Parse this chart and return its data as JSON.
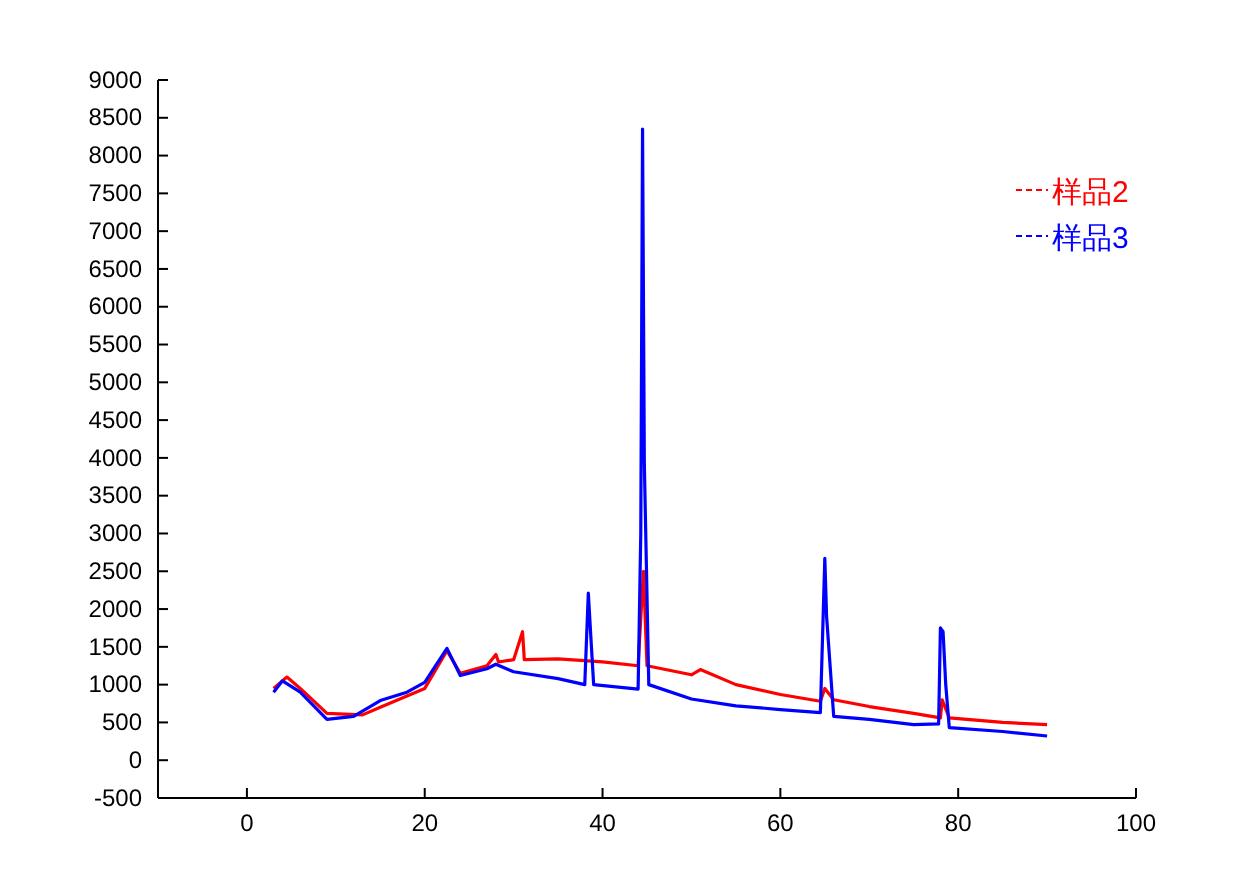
{
  "chart_data": {
    "type": "line",
    "xlim": [
      -10,
      100
    ],
    "xticks": [
      0,
      20,
      40,
      60,
      80,
      100
    ],
    "ylim": [
      -500,
      9000
    ],
    "yticks": [
      -500,
      0,
      500,
      1000,
      1500,
      2000,
      2500,
      3000,
      3500,
      4000,
      4500,
      5000,
      5500,
      6000,
      6500,
      7000,
      7500,
      8000,
      8500,
      9000
    ],
    "grid": false,
    "legend": "top right",
    "line_style": "solid",
    "marker": "none",
    "series": [
      {
        "name": "样品2",
        "color": "#ff0000",
        "x": [
          3,
          4.5,
          6,
          9,
          13,
          15,
          18,
          20,
          22.5,
          24,
          27,
          28,
          28.3,
          30,
          31,
          31.2,
          35,
          40,
          44,
          44.6,
          45,
          50,
          51,
          55,
          60,
          64.5,
          65,
          66,
          70,
          75,
          78,
          78.2,
          79,
          85,
          90
        ],
        "values": [
          950,
          1100,
          950,
          620,
          600,
          700,
          850,
          950,
          1450,
          1150,
          1250,
          1400,
          1300,
          1330,
          1700,
          1330,
          1340,
          1300,
          1250,
          2500,
          1250,
          1130,
          1200,
          1000,
          870,
          780,
          950,
          800,
          710,
          620,
          560,
          800,
          560,
          500,
          470
        ]
      },
      {
        "name": "样品3",
        "color": "#0000ff",
        "x": [
          3,
          4,
          6,
          9,
          12,
          15,
          18,
          20,
          22.5,
          24,
          27,
          28,
          30,
          35,
          38,
          38.4,
          38.6,
          39,
          44,
          44.3,
          44.5,
          44.7,
          45.2,
          50,
          55,
          60,
          64.5,
          65,
          65.2,
          66,
          70,
          75,
          77.8,
          78,
          78.3,
          78.6,
          79,
          85,
          90
        ],
        "values": [
          900,
          1050,
          900,
          540,
          580,
          790,
          900,
          1030,
          1480,
          1120,
          1210,
          1270,
          1170,
          1080,
          1000,
          2210,
          1800,
          1000,
          940,
          3000,
          8350,
          3930,
          1000,
          810,
          720,
          670,
          630,
          2670,
          1900,
          580,
          540,
          470,
          480,
          1750,
          1700,
          1000,
          430,
          380,
          320
        ]
      }
    ]
  }
}
